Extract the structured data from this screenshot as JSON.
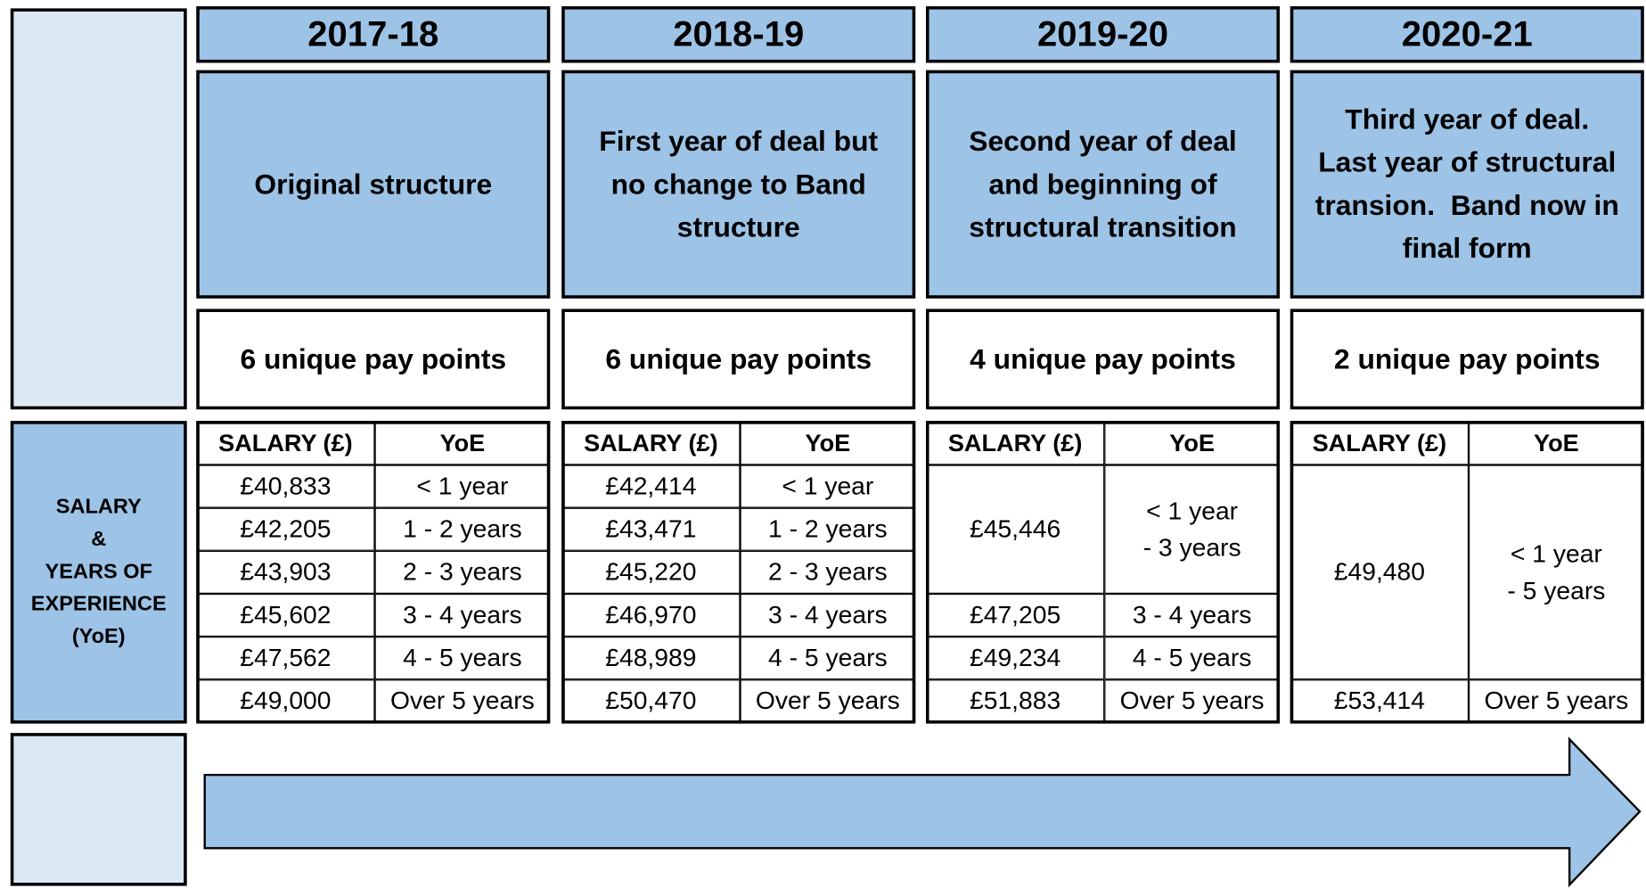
{
  "side_label": [
    "SALARY",
    "&",
    "YEARS OF",
    "EXPERIENCE",
    "(YoE)"
  ],
  "columns": [
    {
      "year": "2017-18",
      "description": [
        "Original structure"
      ],
      "pay_points": "6 unique pay points",
      "salary_header": "SALARY (£)",
      "yoe_header": "YoE",
      "rows": [
        {
          "salary": "£40,833",
          "yoe": [
            "< 1 year"
          ],
          "span": 1
        },
        {
          "salary": "£42,205",
          "yoe": [
            "1 - 2 years"
          ],
          "span": 1
        },
        {
          "salary": "£43,903",
          "yoe": [
            "2 - 3 years"
          ],
          "span": 1
        },
        {
          "salary": "£45,602",
          "yoe": [
            "3 - 4 years"
          ],
          "span": 1
        },
        {
          "salary": "£47,562",
          "yoe": [
            "4 - 5 years"
          ],
          "span": 1
        },
        {
          "salary": "£49,000",
          "yoe": [
            "Over 5 years"
          ],
          "span": 1
        }
      ]
    },
    {
      "year": "2018-19",
      "description": [
        "First year of deal but",
        "no change to Band",
        "structure"
      ],
      "pay_points": "6 unique pay points",
      "salary_header": "SALARY (£)",
      "yoe_header": "YoE",
      "rows": [
        {
          "salary": "£42,414",
          "yoe": [
            "< 1 year"
          ],
          "span": 1
        },
        {
          "salary": "£43,471",
          "yoe": [
            "1 - 2 years"
          ],
          "span": 1
        },
        {
          "salary": "£45,220",
          "yoe": [
            "2 - 3 years"
          ],
          "span": 1
        },
        {
          "salary": "£46,970",
          "yoe": [
            "3 - 4 years"
          ],
          "span": 1
        },
        {
          "salary": "£48,989",
          "yoe": [
            "4 - 5 years"
          ],
          "span": 1
        },
        {
          "salary": "£50,470",
          "yoe": [
            "Over 5 years"
          ],
          "span": 1
        }
      ]
    },
    {
      "year": "2019-20",
      "description": [
        "Second year of deal",
        "and beginning of",
        "structural transition"
      ],
      "pay_points": "4 unique pay points",
      "salary_header": "SALARY (£)",
      "yoe_header": "YoE",
      "rows": [
        {
          "salary": "£45,446",
          "yoe": [
            "< 1 year",
            "- 3 years"
          ],
          "span": 3
        },
        {
          "salary": "£47,205",
          "yoe": [
            "3 - 4 years"
          ],
          "span": 1
        },
        {
          "salary": "£49,234",
          "yoe": [
            "4 - 5 years"
          ],
          "span": 1
        },
        {
          "salary": "£51,883",
          "yoe": [
            "Over 5 years"
          ],
          "span": 1
        }
      ]
    },
    {
      "year": "2020-21",
      "description": [
        "Third year of deal.",
        "Last year of structural",
        "transion.  Band now in",
        "final form"
      ],
      "pay_points": "2 unique pay points",
      "salary_header": "SALARY (£)",
      "yoe_header": "YoE",
      "rows": [
        {
          "salary": "£49,480",
          "yoe": [
            "< 1 year",
            "- 5 years"
          ],
          "span": 5
        },
        {
          "salary": "£53,414",
          "yoe": [
            "Over 5 years"
          ],
          "span": 1
        }
      ]
    }
  ]
}
